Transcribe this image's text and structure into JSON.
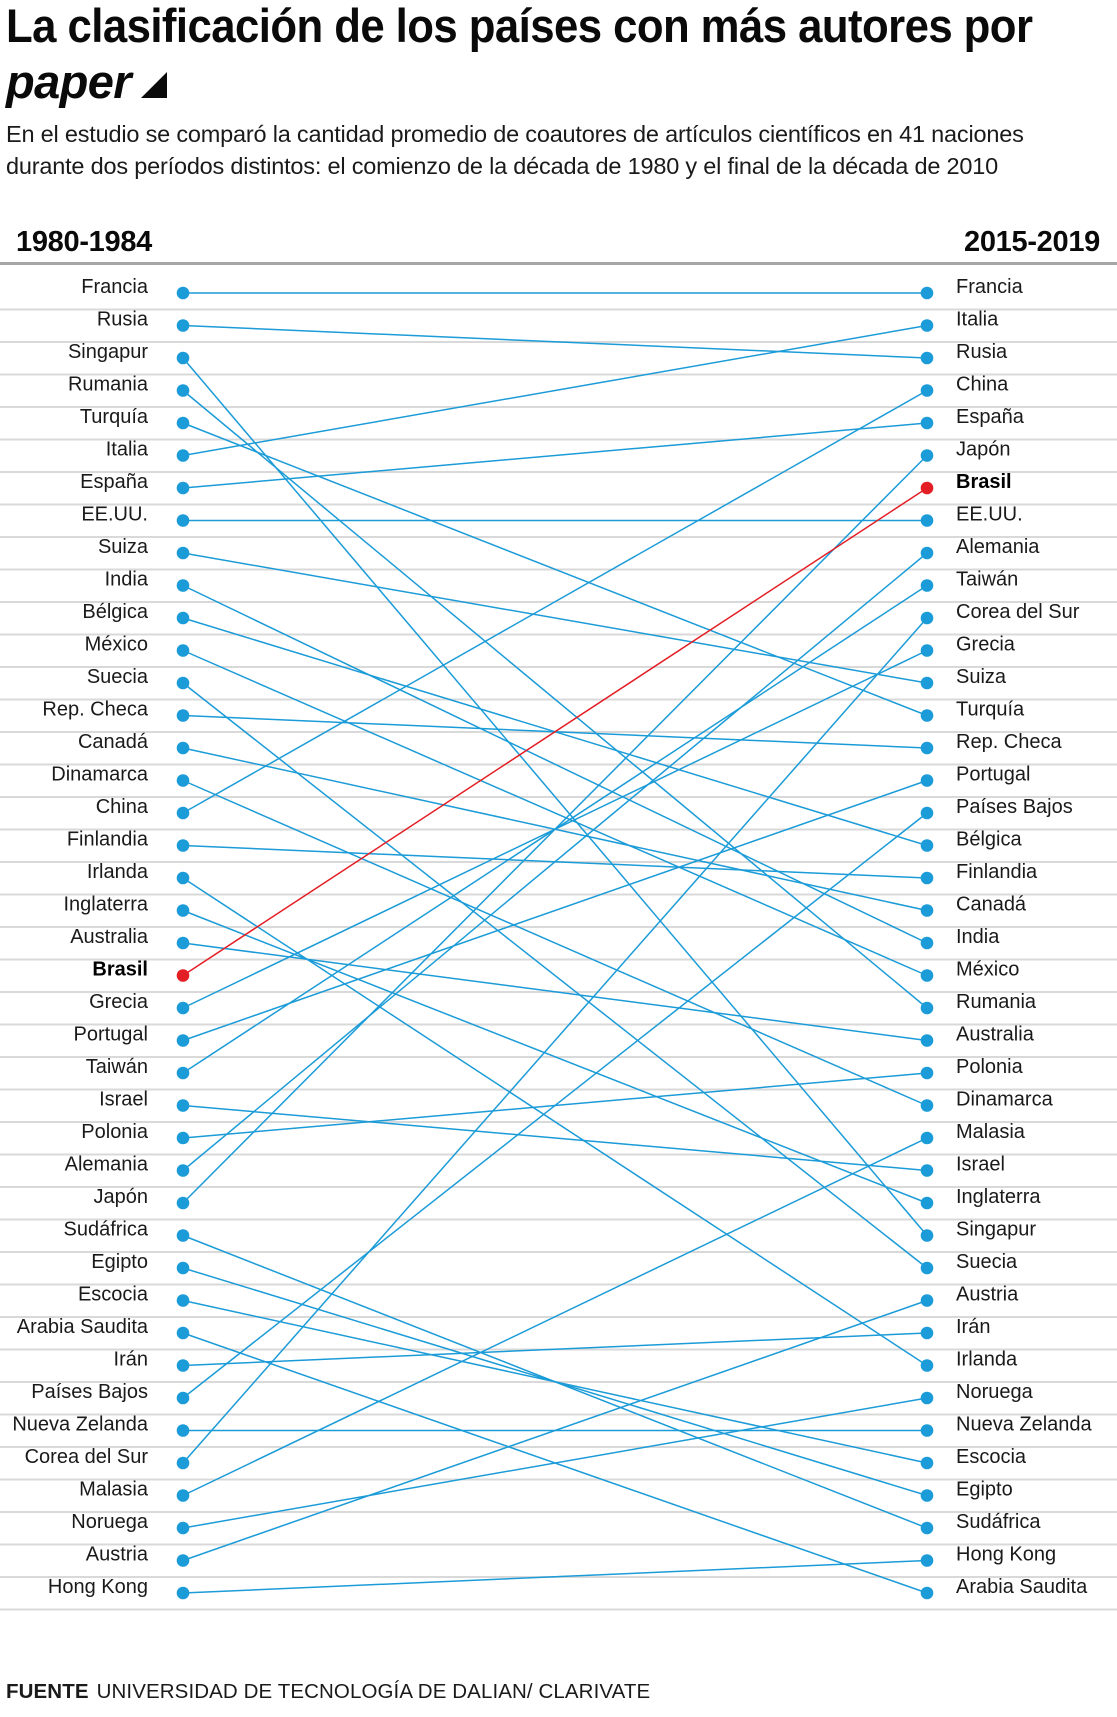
{
  "header": {
    "title_line1": "La clasificación de los países con más autores por",
    "title_line2": "paper",
    "title_marker_icon": "triangle-icon",
    "description_line1": "En el estudio se comparó la cantidad promedio de coautores de artículos científicos en 41 naciones",
    "description_line2": "durante dos períodos distintos: el comienzo de la década de 1980 y el final de la década de 2010"
  },
  "source": {
    "label": "FUENTE",
    "text": "UNIVERSIDAD DE TECNOLOGÍA DE DALIAN/ CLARIVATE"
  },
  "colors": {
    "line": "#1b9bd7",
    "highlight": "#e31e24",
    "separator": "#d9d9d9"
  },
  "chart_data": {
    "type": "slope",
    "title": "La clasificación de los países con más autores por paper",
    "left_label": "1980-1984",
    "right_label": "2015-2019",
    "highlight": "Brasil",
    "left_ranking": [
      "Francia",
      "Rusia",
      "Singapur",
      "Rumania",
      "Turquía",
      "Italia",
      "España",
      "EE.UU.",
      "Suiza",
      "India",
      "Bélgica",
      "México",
      "Suecia",
      "Rep. Checa",
      "Canadá",
      "Dinamarca",
      "China",
      "Finlandia",
      "Irlanda",
      "Inglaterra",
      "Australia",
      "Brasil",
      "Grecia",
      "Portugal",
      "Taiwán",
      "Israel",
      "Polonia",
      "Alemania",
      "Japón",
      "Sudáfrica",
      "Egipto",
      "Escocia",
      "Arabia Saudita",
      "Irán",
      "Países Bajos",
      "Nueva Zelanda",
      "Corea del Sur",
      "Malasia",
      "Noruega",
      "Austria",
      "Hong Kong"
    ],
    "right_ranking": [
      "Francia",
      "Italia",
      "Rusia",
      "China",
      "España",
      "Japón",
      "Brasil",
      "EE.UU.",
      "Alemania",
      "Taiwán",
      "Corea del Sur",
      "Grecia",
      "Suiza",
      "Turquía",
      "Rep. Checa",
      "Portugal",
      "Países Bajos",
      "Bélgica",
      "Finlandia",
      "Canadá",
      "India",
      "México",
      "Rumania",
      "Australia",
      "Polonia",
      "Dinamarca",
      "Malasia",
      "Israel",
      "Inglaterra",
      "Singapur",
      "Suecia",
      "Austria",
      "Irán",
      "Irlanda",
      "Noruega",
      "Nueva Zelanda",
      "Escocia",
      "Egipto",
      "Sudáfrica",
      "Hong Kong",
      "Arabia Saudita"
    ]
  }
}
